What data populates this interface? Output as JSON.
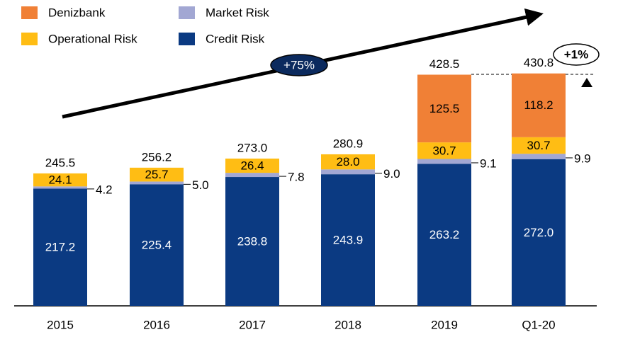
{
  "chart_data": {
    "type": "stacked_bar",
    "categories": [
      "2015",
      "2016",
      "2017",
      "2018",
      "2019",
      "Q1-20"
    ],
    "series": [
      {
        "name": "Credit Risk",
        "color": "#0b3a82",
        "values": [
          217.2,
          225.4,
          238.8,
          243.9,
          263.2,
          272.0
        ],
        "value_labels": [
          "217.2",
          "225.4",
          "238.8",
          "243.9",
          "263.2",
          "272.0"
        ]
      },
      {
        "name": "Market Risk",
        "color": "#a2a7d3",
        "values": [
          4.2,
          5.0,
          7.8,
          9.0,
          9.1,
          9.9
        ],
        "value_labels": [
          "4.2",
          "5.0",
          "7.8",
          "9.0",
          "9.1",
          "9.9"
        ]
      },
      {
        "name": "Operational Risk",
        "color": "#ffbd14",
        "values": [
          24.1,
          25.7,
          26.4,
          28.0,
          30.7,
          30.7
        ],
        "value_labels": [
          "24.1",
          "25.7",
          "26.4",
          "28.0",
          "30.7",
          "30.7"
        ]
      },
      {
        "name": "Denizbank",
        "color": "#f08036",
        "values": [
          null,
          null,
          null,
          null,
          125.5,
          118.2
        ],
        "value_labels": [
          null,
          null,
          null,
          null,
          "125.5",
          "118.2"
        ]
      }
    ],
    "totals": [
      245.5,
      256.2,
      273.0,
      280.9,
      428.5,
      430.8
    ],
    "total_labels": [
      "245.5",
      "256.2",
      "273.0",
      "280.9",
      "428.5",
      "430.8"
    ],
    "annotations": [
      "+75%",
      "+1%"
    ]
  }
}
